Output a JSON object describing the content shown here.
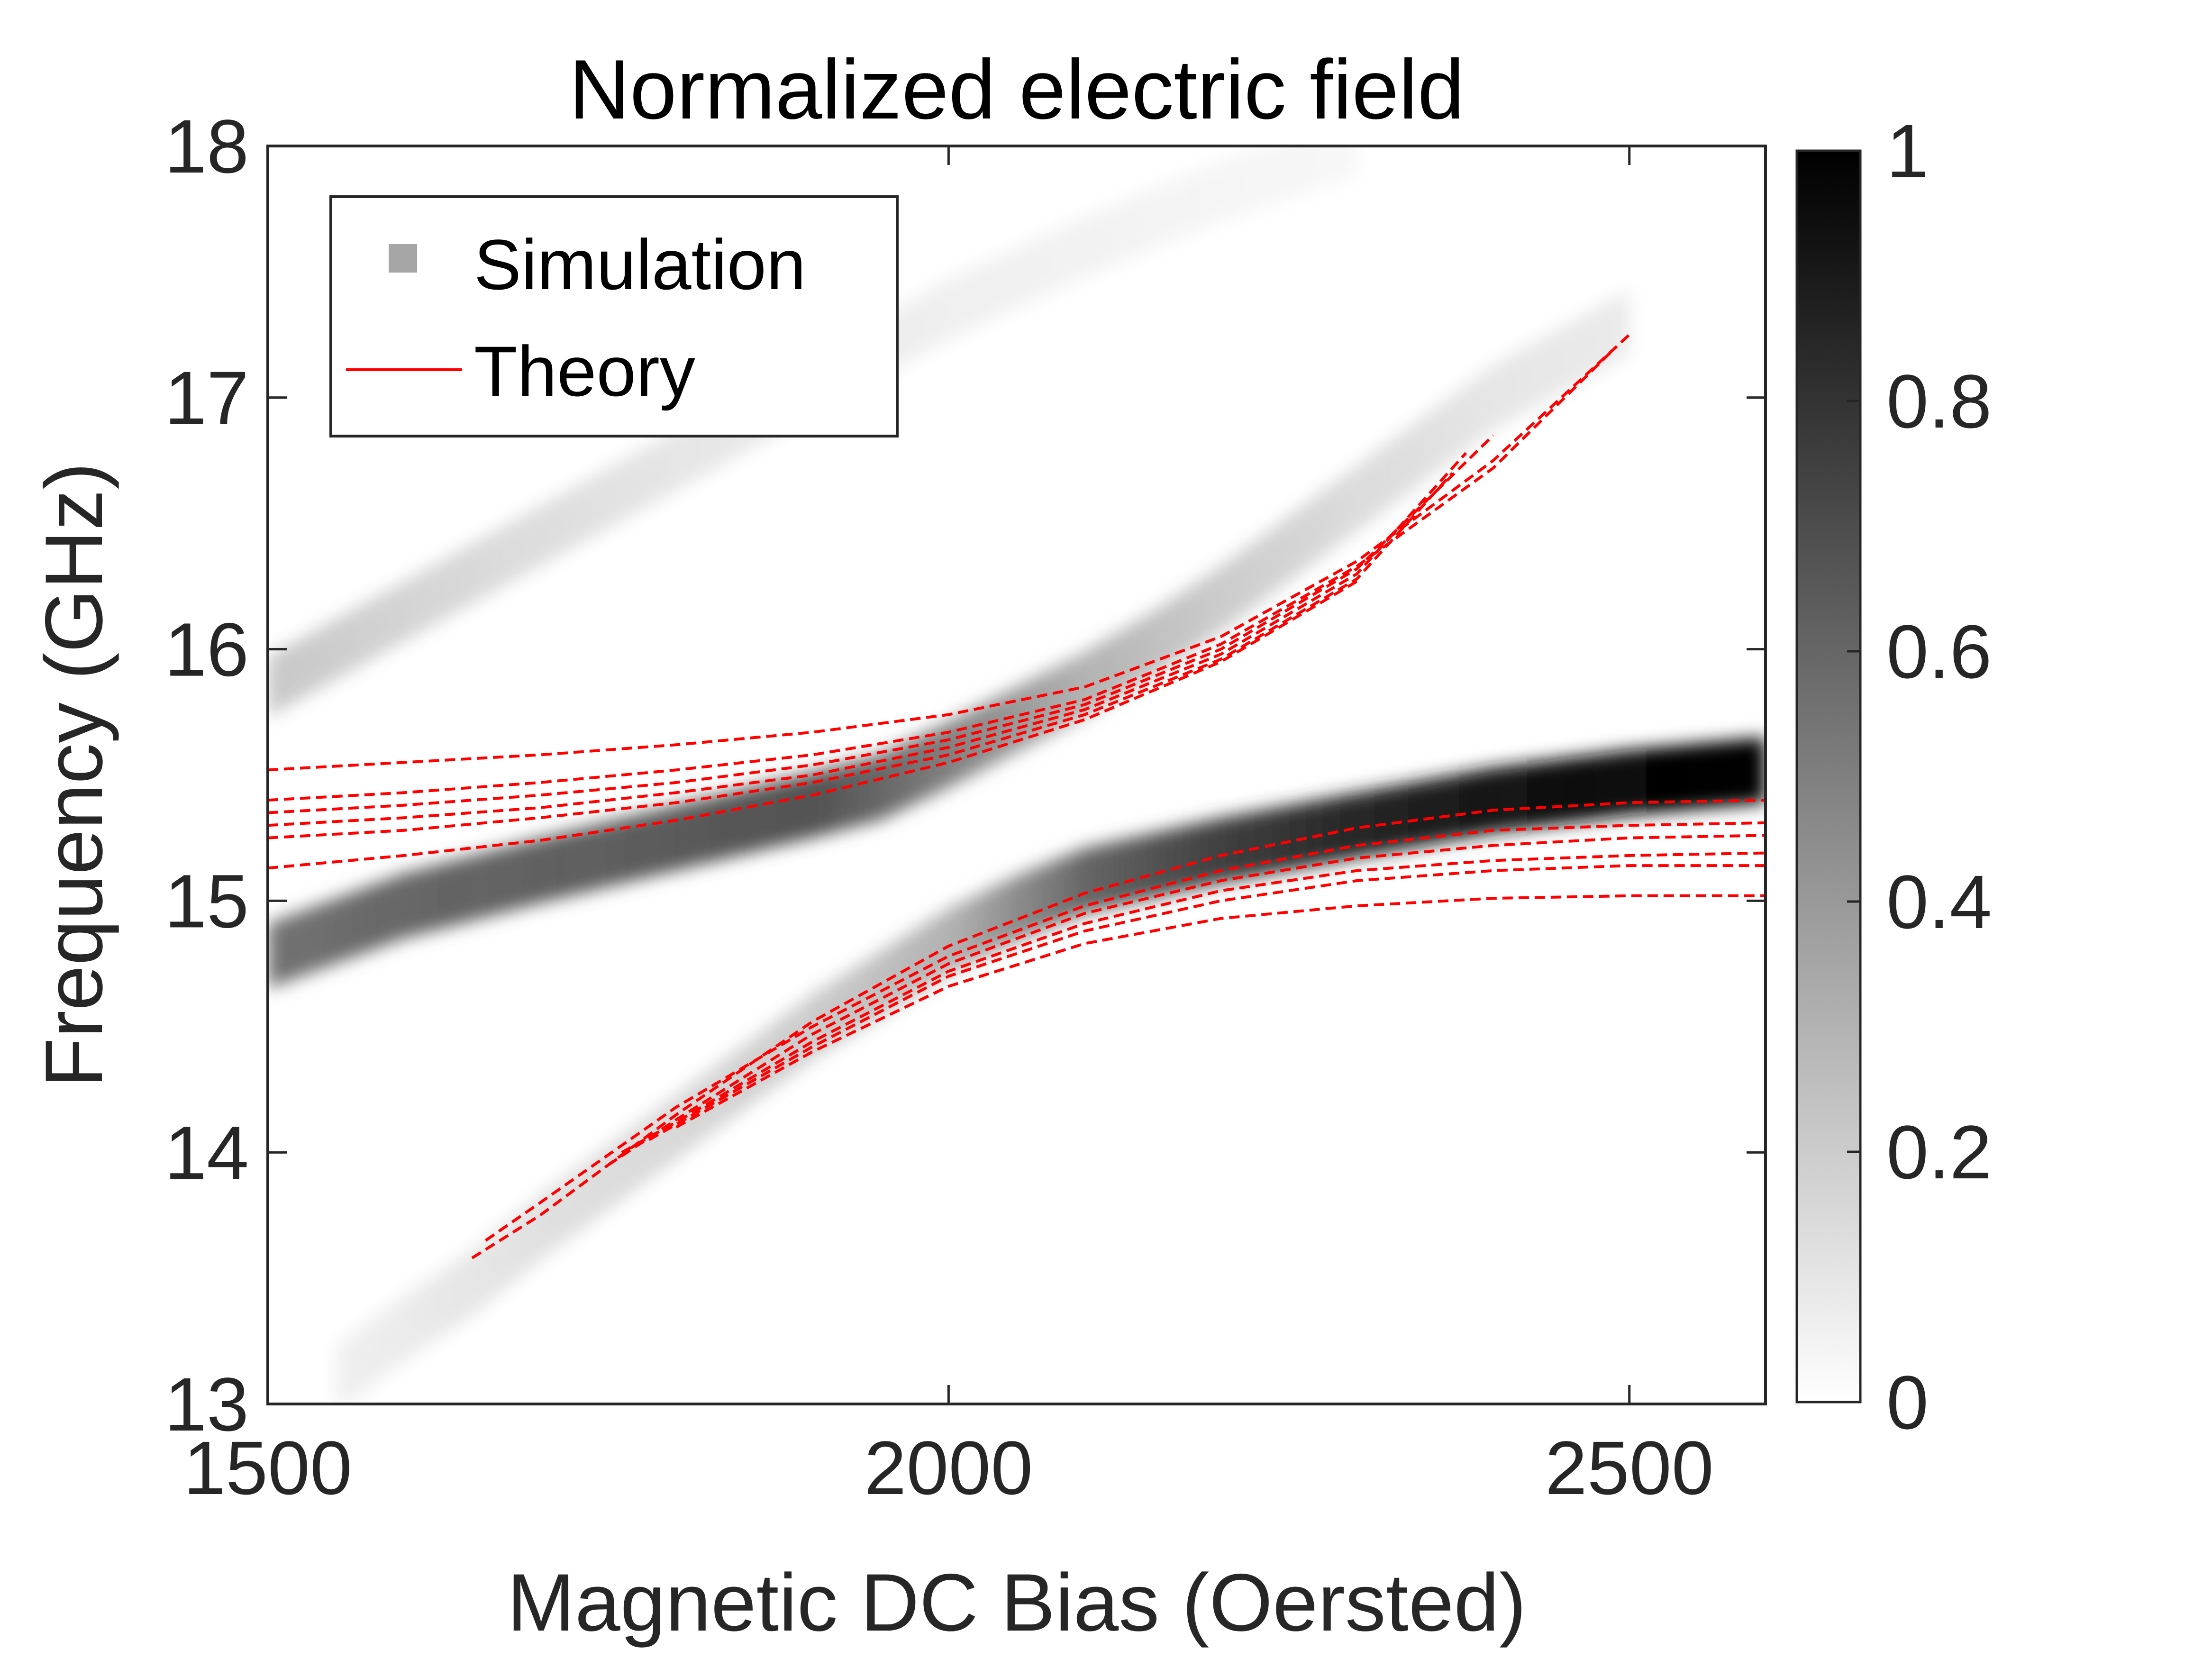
{
  "chart_data": {
    "type": "heatmap",
    "title": "Normalized electric field",
    "xlabel": "Magnetic DC Bias (Oersted)",
    "ylabel": "Frequency (GHz)",
    "xlim": [
      1500,
      2600
    ],
    "ylim": [
      13,
      18
    ],
    "x_ticks": [
      "1500",
      "2000",
      "2500"
    ],
    "y_ticks": [
      "13",
      "14",
      "15",
      "16",
      "17",
      "18"
    ],
    "colorbar": {
      "range": [
        0,
        1
      ],
      "ticks": [
        "0",
        "0.2",
        "0.4",
        "0.6",
        "0.8",
        "1"
      ],
      "colormap": "gray-reversed"
    },
    "legend": {
      "placement": "top-left",
      "entries": [
        {
          "label": "Simulation",
          "marker": "square",
          "color": "#a6a6a6"
        },
        {
          "label": "Theory",
          "marker": "line",
          "color": "#ff0000"
        }
      ]
    },
    "simulation_bands": [
      {
        "name": "lower",
        "points": [
          [
            1500,
            14.78
          ],
          [
            1600,
            14.98
          ],
          [
            1700,
            15.12
          ],
          [
            1800,
            15.25
          ],
          [
            1900,
            15.38
          ],
          [
            1950,
            15.45
          ],
          [
            2000,
            15.58
          ],
          [
            2050,
            15.72
          ],
          [
            2100,
            15.86
          ],
          [
            2150,
            16.02
          ],
          [
            2200,
            16.2
          ],
          [
            2250,
            16.4
          ],
          [
            2300,
            16.6
          ],
          [
            2350,
            16.8
          ],
          [
            2400,
            17.0
          ],
          [
            2450,
            17.15
          ],
          [
            2500,
            17.3
          ]
        ],
        "intensity": [
          0.55,
          0.6,
          0.62,
          0.65,
          0.68,
          0.6,
          0.5,
          0.4,
          0.3,
          0.25,
          0.2,
          0.17,
          0.14,
          0.12,
          0.1,
          0.09,
          0.08
        ],
        "width": 0.13
      },
      {
        "name": "upper",
        "points": [
          [
            1550,
            13.1
          ],
          [
            1600,
            13.3
          ],
          [
            1650,
            13.48
          ],
          [
            1700,
            13.7
          ],
          [
            1800,
            14.1
          ],
          [
            1900,
            14.5
          ],
          [
            2000,
            14.84
          ],
          [
            2050,
            14.97
          ],
          [
            2100,
            15.08
          ],
          [
            2200,
            15.2
          ],
          [
            2300,
            15.3
          ],
          [
            2400,
            15.4
          ],
          [
            2500,
            15.47
          ],
          [
            2600,
            15.52
          ]
        ],
        "intensity": [
          0.06,
          0.08,
          0.1,
          0.12,
          0.15,
          0.2,
          0.3,
          0.45,
          0.6,
          0.75,
          0.85,
          0.92,
          0.97,
          1.0
        ],
        "width": 0.13
      },
      {
        "name": "faint-upper",
        "points": [
          [
            1500,
            15.85
          ],
          [
            1600,
            16.15
          ],
          [
            1700,
            16.45
          ],
          [
            1800,
            16.75
          ],
          [
            1900,
            17.05
          ],
          [
            2000,
            17.35
          ],
          [
            2100,
            17.6
          ],
          [
            2200,
            17.82
          ],
          [
            2300,
            18.0
          ]
        ],
        "intensity": [
          0.22,
          0.17,
          0.13,
          0.1,
          0.08,
          0.06,
          0.05,
          0.04,
          0.03
        ],
        "width": 0.12
      }
    ],
    "theory_series": [
      {
        "segments": [
          [
            [
              1500,
              15.52
            ],
            [
              1600,
              15.55
            ],
            [
              1700,
              15.58
            ],
            [
              1800,
              15.62
            ],
            [
              1900,
              15.67
            ],
            [
              2000,
              15.74
            ],
            [
              2100,
              15.85
            ],
            [
              2200,
              16.05
            ],
            [
              2300,
              16.35
            ],
            [
              2400,
              16.75
            ],
            [
              2500,
              17.25
            ]
          ]
        ]
      },
      {
        "segments": [
          [
            [
              1500,
              15.4
            ],
            [
              1600,
              15.43
            ],
            [
              1700,
              15.47
            ],
            [
              1800,
              15.52
            ],
            [
              1900,
              15.58
            ],
            [
              2000,
              15.67
            ],
            [
              2100,
              15.8
            ],
            [
              2200,
              16.02
            ],
            [
              2300,
              16.33
            ],
            [
              2400,
              16.72
            ],
            [
              2490,
              17.2
            ]
          ]
        ]
      },
      {
        "segments": [
          [
            [
              1500,
              15.35
            ],
            [
              1600,
              15.38
            ],
            [
              1700,
              15.42
            ],
            [
              1800,
              15.47
            ],
            [
              1900,
              15.54
            ],
            [
              2000,
              15.64
            ],
            [
              2100,
              15.78
            ],
            [
              2200,
              16.0
            ],
            [
              2300,
              16.32
            ],
            [
              2400,
              16.85
            ]
          ]
        ]
      },
      {
        "segments": [
          [
            [
              1500,
              15.3
            ],
            [
              1600,
              15.33
            ],
            [
              1700,
              15.37
            ],
            [
              1800,
              15.43
            ],
            [
              1900,
              15.5
            ],
            [
              2000,
              15.61
            ],
            [
              2100,
              15.76
            ],
            [
              2200,
              15.98
            ],
            [
              2300,
              16.3
            ],
            [
              2380,
              16.78
            ]
          ]
        ]
      },
      {
        "segments": [
          [
            [
              1500,
              15.25
            ],
            [
              1600,
              15.28
            ],
            [
              1700,
              15.33
            ],
            [
              1800,
              15.39
            ],
            [
              1900,
              15.47
            ],
            [
              2000,
              15.58
            ],
            [
              2100,
              15.74
            ],
            [
              2200,
              15.96
            ],
            [
              2300,
              16.28
            ],
            [
              2370,
              16.7
            ]
          ]
        ]
      },
      {
        "segments": [
          [
            [
              1500,
              15.13
            ],
            [
              1600,
              15.18
            ],
            [
              1700,
              15.24
            ],
            [
              1800,
              15.32
            ],
            [
              1900,
              15.42
            ],
            [
              2000,
              15.55
            ],
            [
              2100,
              15.72
            ],
            [
              2200,
              15.95
            ],
            [
              2300,
              16.27
            ]
          ]
        ]
      },
      {
        "segments": [
          [
            [
              1650,
              13.58
            ],
            [
              1700,
              13.75
            ],
            [
              1800,
              14.15
            ],
            [
              1900,
              14.52
            ],
            [
              2000,
              14.82
            ],
            [
              2100,
              15.03
            ],
            [
              2200,
              15.18
            ],
            [
              2300,
              15.29
            ],
            [
              2400,
              15.36
            ],
            [
              2500,
              15.39
            ],
            [
              2600,
              15.4
            ]
          ]
        ]
      },
      {
        "segments": [
          [
            [
              1660,
              13.65
            ],
            [
              1700,
              13.8
            ],
            [
              1800,
              14.18
            ],
            [
              1900,
              14.5
            ],
            [
              2000,
              14.78
            ],
            [
              2100,
              14.98
            ],
            [
              2200,
              15.12
            ],
            [
              2300,
              15.22
            ],
            [
              2400,
              15.28
            ],
            [
              2500,
              15.3
            ],
            [
              2600,
              15.31
            ]
          ]
        ]
      },
      {
        "segments": [
          [
            [
              1750,
              13.95
            ],
            [
              1800,
              14.13
            ],
            [
              1900,
              14.47
            ],
            [
              2000,
              14.75
            ],
            [
              2100,
              14.95
            ],
            [
              2200,
              15.08
            ],
            [
              2300,
              15.17
            ],
            [
              2400,
              15.22
            ],
            [
              2500,
              15.25
            ],
            [
              2600,
              15.26
            ]
          ]
        ]
      },
      {
        "segments": [
          [
            [
              1760,
              14.0
            ],
            [
              1800,
              14.12
            ],
            [
              1900,
              14.44
            ],
            [
              2000,
              14.72
            ],
            [
              2100,
              14.91
            ],
            [
              2200,
              15.04
            ],
            [
              2300,
              15.12
            ],
            [
              2400,
              15.16
            ],
            [
              2500,
              15.18
            ],
            [
              2600,
              15.19
            ]
          ]
        ]
      },
      {
        "segments": [
          [
            [
              1780,
              14.05
            ],
            [
              1900,
              14.42
            ],
            [
              2000,
              14.7
            ],
            [
              2100,
              14.88
            ],
            [
              2200,
              15.0
            ],
            [
              2300,
              15.08
            ],
            [
              2400,
              15.12
            ],
            [
              2500,
              15.14
            ],
            [
              2600,
              15.14
            ]
          ]
        ]
      },
      {
        "segments": [
          [
            [
              1800,
              14.1
            ],
            [
              1900,
              14.4
            ],
            [
              2000,
              14.66
            ],
            [
              2100,
              14.83
            ],
            [
              2200,
              14.93
            ],
            [
              2300,
              14.98
            ],
            [
              2400,
              15.01
            ],
            [
              2500,
              15.02
            ],
            [
              2600,
              15.02
            ]
          ]
        ]
      }
    ]
  }
}
